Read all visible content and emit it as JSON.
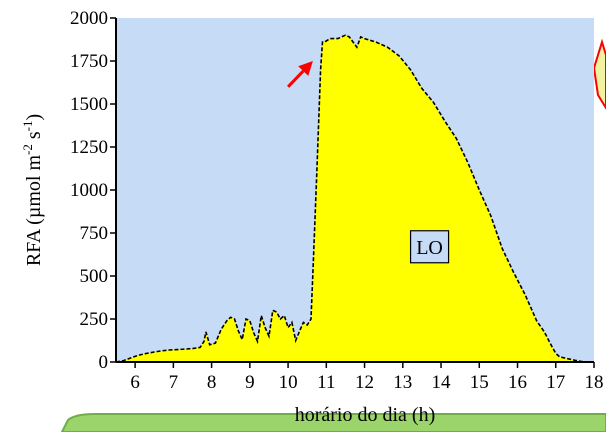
{
  "chart_data": {
    "type": "area",
    "xlabel": "horário do dia (h)",
    "ylabel": "RFA (µmol  m-2 s-1)",
    "ylabel_parts": {
      "main": "RFA (µmol  m",
      "exp1": "-2",
      "mid": " s",
      "exp2": "-1",
      "end": ")"
    },
    "xlim": [
      5.5,
      18
    ],
    "ylim": [
      0,
      2000
    ],
    "xticks": [
      6,
      7,
      8,
      9,
      10,
      11,
      12,
      13,
      14,
      15,
      16,
      17,
      18
    ],
    "yticks": [
      0,
      250,
      500,
      750,
      1000,
      1250,
      1500,
      1750,
      2000
    ],
    "grid": false,
    "colors": {
      "plot_background": "#c6dbf5",
      "area_fill": "#ffff00",
      "line": "#000000",
      "arrow": "#ff0000",
      "label_box": "#c6dbf5",
      "side_shape_fill": "#f2f2a0",
      "side_shape_stroke": "#ff0000",
      "bottom_banner_fill": "#9bd46a",
      "bottom_banner_stroke": "#70ad47"
    },
    "annotations": [
      {
        "text": "LO",
        "x": 13.7,
        "y": 670
      }
    ],
    "arrow": {
      "from": [
        10.0,
        1600
      ],
      "to": [
        10.65,
        1750
      ]
    },
    "series": [
      {
        "x": [
          5.5,
          5.7,
          5.9,
          6.1,
          6.3,
          6.5,
          6.7,
          6.9,
          7.1,
          7.3,
          7.5,
          7.7,
          7.8,
          7.85,
          7.95,
          8.1,
          8.25,
          8.4,
          8.5,
          8.6,
          8.7,
          8.8,
          8.9,
          9.0,
          9.1,
          9.2,
          9.3,
          9.4,
          9.5,
          9.6,
          9.7,
          9.8,
          9.9,
          10.0,
          10.1,
          10.2,
          10.3,
          10.4,
          10.5,
          10.6,
          10.65,
          10.75,
          10.85,
          10.9,
          10.95,
          11.1,
          11.3,
          11.5,
          11.6,
          11.7,
          11.8,
          11.9,
          12.0,
          12.3,
          12.6,
          12.9,
          13.2,
          13.5,
          13.8,
          14.1,
          14.4,
          14.7,
          15.0,
          15.3,
          15.6,
          15.9,
          16.2,
          16.5,
          16.7,
          16.9,
          17.0,
          17.1,
          17.3,
          17.5,
          17.7,
          17.8
        ],
        "y": [
          0,
          8,
          25,
          40,
          50,
          58,
          65,
          70,
          72,
          75,
          78,
          85,
          120,
          175,
          100,
          110,
          190,
          240,
          260,
          250,
          180,
          130,
          250,
          240,
          170,
          120,
          270,
          200,
          150,
          300,
          290,
          250,
          270,
          200,
          230,
          125,
          180,
          230,
          215,
          250,
          520,
          1100,
          1700,
          1860,
          1860,
          1880,
          1880,
          1900,
          1890,
          1860,
          1830,
          1890,
          1880,
          1860,
          1830,
          1780,
          1700,
          1590,
          1510,
          1400,
          1300,
          1160,
          1000,
          850,
          660,
          520,
          390,
          240,
          175,
          90,
          50,
          30,
          20,
          10,
          2,
          0
        ]
      }
    ]
  }
}
